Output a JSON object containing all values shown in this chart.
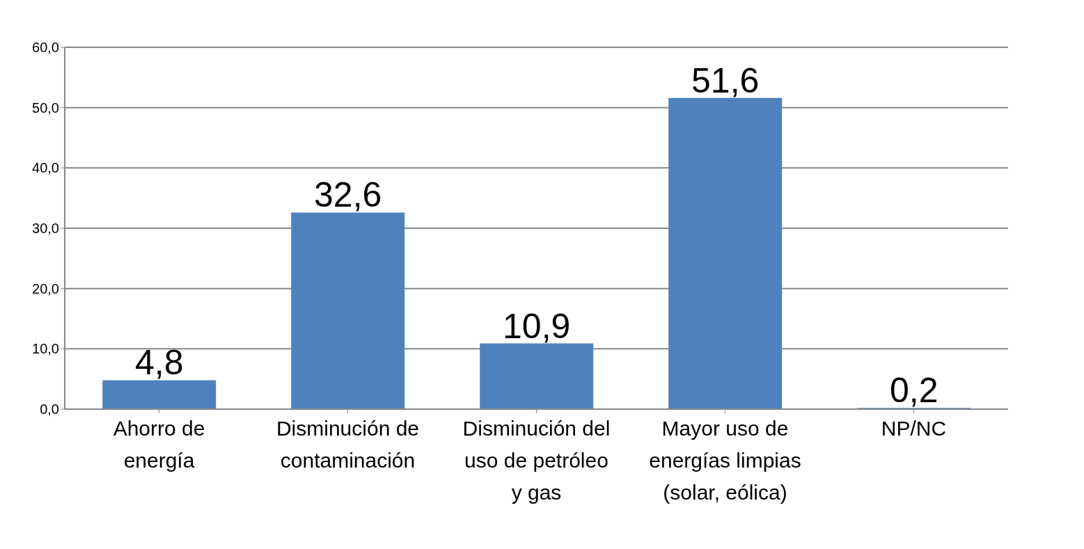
{
  "chart_data": {
    "type": "bar",
    "categories": [
      "Ahorro de energía",
      "Disminución de contaminación",
      "Disminución del uso de petróleo y gas",
      "Mayor uso de energías limpias (solar, eólica)",
      "NP/NC"
    ],
    "values": [
      4.8,
      32.6,
      10.9,
      51.6,
      0.2
    ],
    "value_labels": [
      "4,8",
      "32,6",
      "10,9",
      "51,6",
      "0,2"
    ],
    "color": "#4f81bd",
    "ylim": [
      0,
      60
    ],
    "yticks": [
      {
        "value": 0,
        "label": "0,0"
      },
      {
        "value": 10,
        "label": "10,0"
      },
      {
        "value": 20,
        "label": "20,0"
      },
      {
        "value": 30,
        "label": "30,0"
      },
      {
        "value": 40,
        "label": "40,0"
      },
      {
        "value": 50,
        "label": "50,0"
      },
      {
        "value": 60,
        "label": "60,0"
      }
    ],
    "grid": "y"
  }
}
